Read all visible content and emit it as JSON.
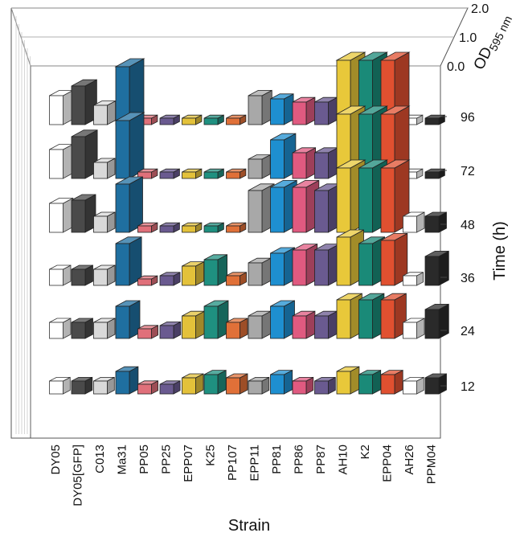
{
  "chart_data": {
    "type": "bar3d",
    "xlabel": "Strain",
    "ylabel": "Time (h)",
    "zlabel_main": "OD",
    "zlabel_sub": "595 nm",
    "zlim": [
      0.0,
      2.0
    ],
    "z_ticks": [
      "0.0",
      "1.0",
      "2.0"
    ],
    "time_ticks": [
      "96",
      "72",
      "48",
      "36",
      "24",
      "12"
    ],
    "strains": [
      "DY05",
      "DY05[GFP]",
      "C013",
      "Ma31",
      "PP05",
      "PP25",
      "EPP07",
      "K25",
      "PP107",
      "EPP11",
      "PP81",
      "PP86",
      "PP87",
      "AH10",
      "K2",
      "EPP04",
      "AH26",
      "PPM04"
    ],
    "colors": [
      "#ffffff",
      "#4a4a4a",
      "#d9d9d9",
      "#1f6fa0",
      "#e0707a",
      "#6a5a90",
      "#e3c13a",
      "#1f9080",
      "#e07038",
      "#a8a8a8",
      "#1e8fd0",
      "#e05a80",
      "#6a5a90",
      "#e8c83a",
      "#1a8a78",
      "#e05030",
      "#ffffff",
      "#2a2a2a"
    ],
    "series": [
      {
        "name": "96",
        "values": [
          0.9,
          1.2,
          0.6,
          1.8,
          0.2,
          0.2,
          0.2,
          0.2,
          0.2,
          0.9,
          0.8,
          0.7,
          0.7,
          2.0,
          2.0,
          2.0,
          0.2,
          0.2
        ]
      },
      {
        "name": "72",
        "values": [
          0.9,
          1.3,
          0.5,
          1.8,
          0.2,
          0.2,
          0.2,
          0.2,
          0.2,
          0.6,
          1.2,
          0.8,
          0.8,
          2.0,
          2.0,
          2.0,
          0.2,
          0.2
        ]
      },
      {
        "name": "48",
        "values": [
          0.9,
          1.0,
          0.5,
          1.5,
          0.2,
          0.2,
          0.2,
          0.2,
          0.2,
          1.3,
          1.4,
          1.4,
          1.3,
          2.0,
          2.0,
          2.0,
          0.5,
          0.5
        ]
      },
      {
        "name": "36",
        "values": [
          0.5,
          0.5,
          0.5,
          1.3,
          0.2,
          0.3,
          0.6,
          0.8,
          0.3,
          0.7,
          1.0,
          1.1,
          1.1,
          1.5,
          1.3,
          1.4,
          0.3,
          0.9
        ]
      },
      {
        "name": "24",
        "values": [
          0.5,
          0.5,
          0.5,
          1.0,
          0.3,
          0.4,
          0.7,
          1.0,
          0.5,
          0.7,
          1.0,
          0.7,
          0.7,
          1.2,
          1.2,
          1.2,
          0.5,
          0.9
        ]
      },
      {
        "name": "12",
        "values": [
          0.4,
          0.4,
          0.4,
          0.7,
          0.3,
          0.3,
          0.5,
          0.6,
          0.5,
          0.4,
          0.6,
          0.4,
          0.4,
          0.7,
          0.6,
          0.6,
          0.4,
          0.5
        ]
      }
    ]
  }
}
